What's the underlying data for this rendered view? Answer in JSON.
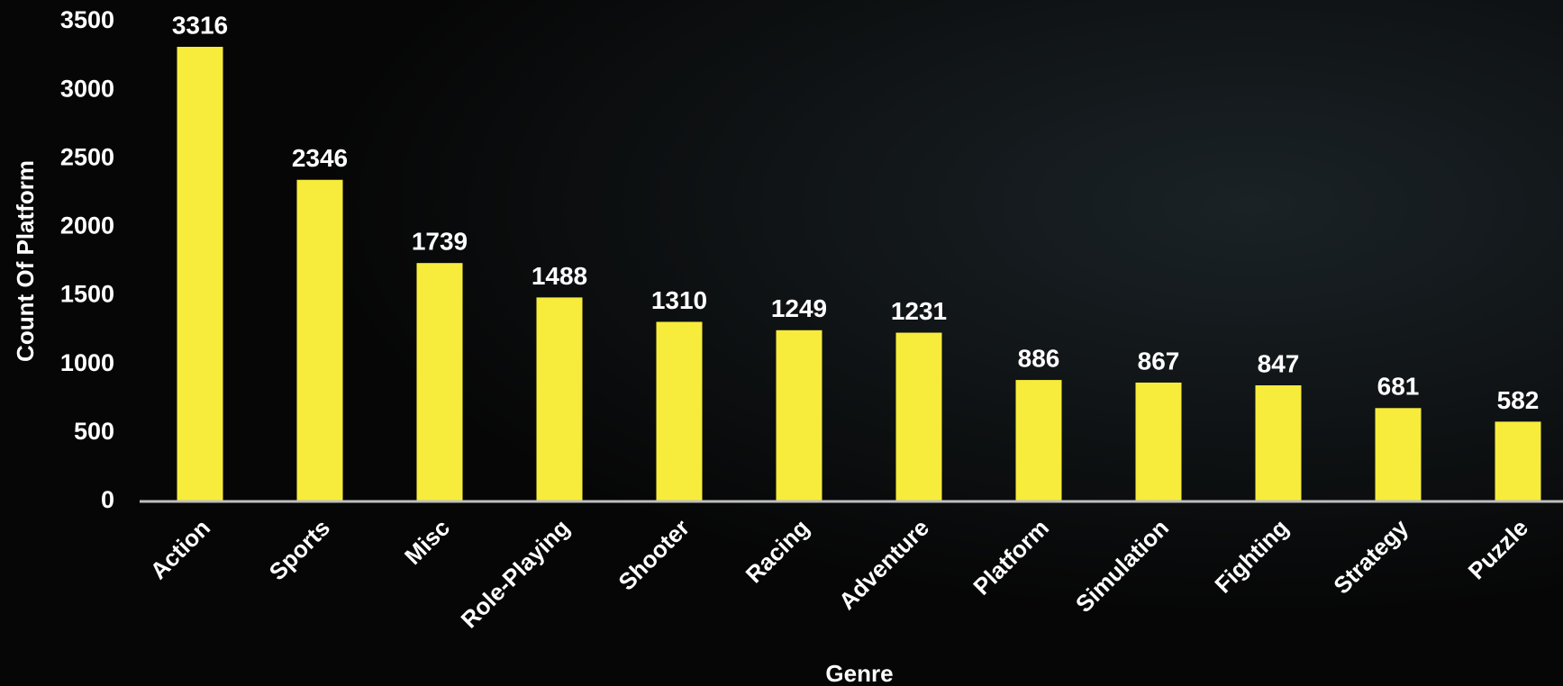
{
  "chart_data": {
    "type": "bar",
    "categories": [
      "Action",
      "Sports",
      "Misc",
      "Role-Playing",
      "Shooter",
      "Racing",
      "Adventure",
      "Platform",
      "Simulation",
      "Fighting",
      "Strategy",
      "Puzzle"
    ],
    "values": [
      3316,
      2346,
      1739,
      1488,
      1310,
      1249,
      1231,
      886,
      867,
      847,
      681,
      582
    ],
    "color": "#f7ec3c",
    "xlabel": "Genre",
    "ylabel": "Count Of Platform",
    "ylim": [
      0,
      3500
    ],
    "yticks": [
      0,
      500,
      1000,
      1500,
      2000,
      2500,
      3000,
      3500
    ],
    "grid": false
  }
}
